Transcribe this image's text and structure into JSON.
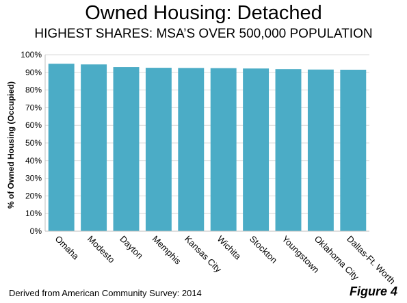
{
  "header": {
    "title": "Owned Housing: Detached",
    "subtitle": "HIGHEST SHARES: MSA’S OVER 500,000 POPULATION"
  },
  "footer": {
    "source": "Derived from American Community Survey: 2014",
    "figure_label": "Figure 4"
  },
  "colors": {
    "bar": "#4bacc6",
    "grid": "#d9d9d9",
    "axis": "#bfbfbf"
  },
  "chart_data": {
    "type": "bar",
    "title": "Owned Housing: Detached",
    "subtitle": "HIGHEST SHARES: MSA’S OVER 500,000 POPULATION",
    "xlabel": "",
    "ylabel": "% of Owned Housing (Occupied)",
    "ylim": [
      0,
      100
    ],
    "yticks": [
      "0%",
      "10%",
      "20%",
      "30%",
      "40%",
      "50%",
      "60%",
      "70%",
      "80%",
      "90%",
      "100%"
    ],
    "grid": true,
    "legend": "none",
    "categories": [
      "Omaha",
      "Modesto",
      "Dayton",
      "Memphis",
      "Kansas City",
      "Wichita",
      "Stockton",
      "Youngstown",
      "Oklahoma City",
      "Dallas-Ft. Worth"
    ],
    "values": [
      94.9,
      94.5,
      93.0,
      92.6,
      92.5,
      92.4,
      92.2,
      91.8,
      91.6,
      91.5
    ]
  }
}
